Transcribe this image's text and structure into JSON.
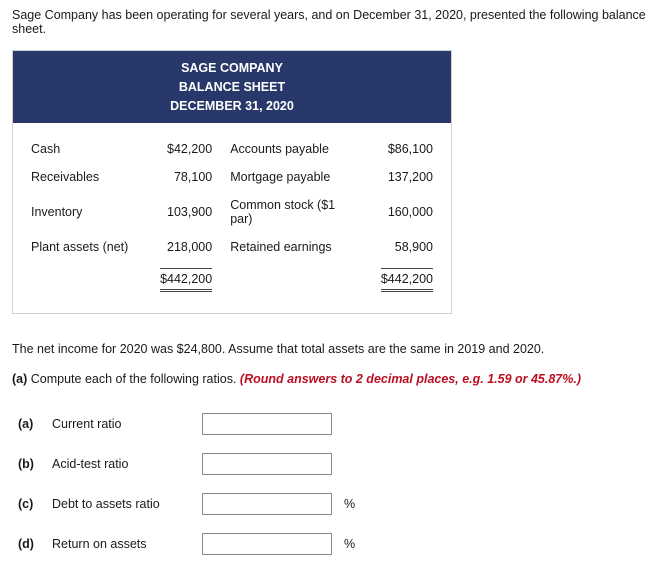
{
  "intro": "Sage Company has been operating for several years, and on December 31, 2020, presented the following balance sheet.",
  "header": {
    "company": "SAGE COMPANY",
    "title": "BALANCE SHEET",
    "date": "DECEMBER 31, 2020"
  },
  "balanceSheet": {
    "rows": [
      {
        "leftLabel": "Cash",
        "leftValue": "$42,200",
        "rightLabel": "Accounts payable",
        "rightValue": "$86,100"
      },
      {
        "leftLabel": "Receivables",
        "leftValue": "78,100",
        "rightLabel": "Mortgage payable",
        "rightValue": "137,200"
      },
      {
        "leftLabel": "Inventory",
        "leftValue": "103,900",
        "rightLabel": "Common stock ($1 par)",
        "rightValue": "160,000"
      },
      {
        "leftLabel": "Plant assets (net)",
        "leftValue": "218,000",
        "rightLabel": "Retained earnings",
        "rightValue": "58,900"
      }
    ],
    "totals": {
      "left": "$442,200",
      "right": "$442,200"
    }
  },
  "questionText": "The net income for 2020 was $24,800. Assume that total assets are the same in 2019 and 2020.",
  "partLabel": "(a)",
  "partText": " Compute each of the following ratios. ",
  "instruction": "(Round answers to 2 decimal places, e.g. 1.59 or 45.87%.)",
  "ratios": [
    {
      "idx": "(a)",
      "label": "Current ratio",
      "unit": ""
    },
    {
      "idx": "(b)",
      "label": "Acid-test ratio",
      "unit": ""
    },
    {
      "idx": "(c)",
      "label": "Debt to assets ratio",
      "unit": "%"
    },
    {
      "idx": "(d)",
      "label": "Return on assets",
      "unit": "%"
    }
  ],
  "styling": {
    "headerBg": "#28386a",
    "headerText": "#ffffff",
    "instructionColor": "#bb0f21",
    "bodyFontSize": 12.5,
    "inputBorderColor": "#888"
  }
}
